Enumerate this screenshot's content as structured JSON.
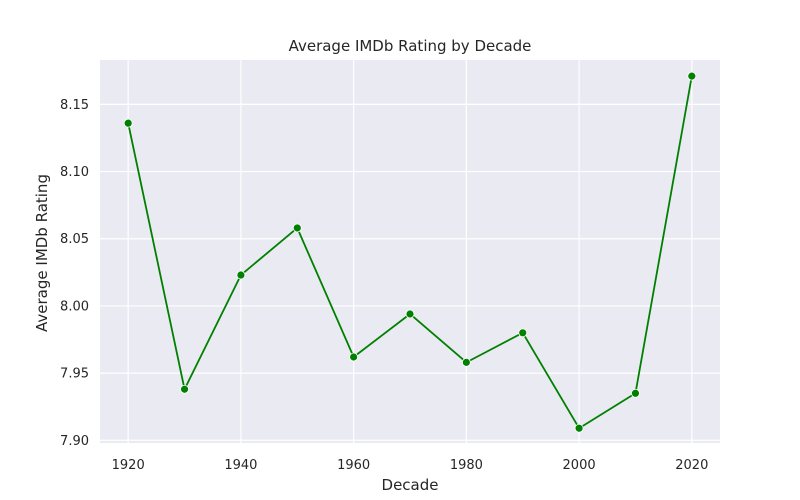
{
  "chart_data": {
    "type": "line",
    "title": "Average IMDb Rating by Decade",
    "xlabel": "Decade",
    "ylabel": "Average IMDb Rating",
    "x": [
      1920,
      1930,
      1940,
      1950,
      1960,
      1970,
      1980,
      1990,
      2000,
      2010,
      2020
    ],
    "series": [
      {
        "values": [
          8.136,
          7.938,
          8.023,
          8.058,
          7.962,
          7.994,
          7.958,
          7.98,
          7.909,
          7.935,
          8.171
        ],
        "color": "#008000",
        "marker": "circle"
      }
    ],
    "xlim": [
      1915,
      2025
    ],
    "ylim": [
      7.898,
      8.183
    ],
    "xticks": [
      1920,
      1940,
      1960,
      1980,
      2000,
      2020
    ],
    "yticks": [
      7.9,
      7.95,
      8.0,
      8.05,
      8.1,
      8.15
    ],
    "ytick_labels": [
      "7.90",
      "7.95",
      "8.00",
      "8.05",
      "8.10",
      "8.15"
    ],
    "grid": true,
    "background_color": "#eaeaf2",
    "grid_color": "#ffffff"
  }
}
